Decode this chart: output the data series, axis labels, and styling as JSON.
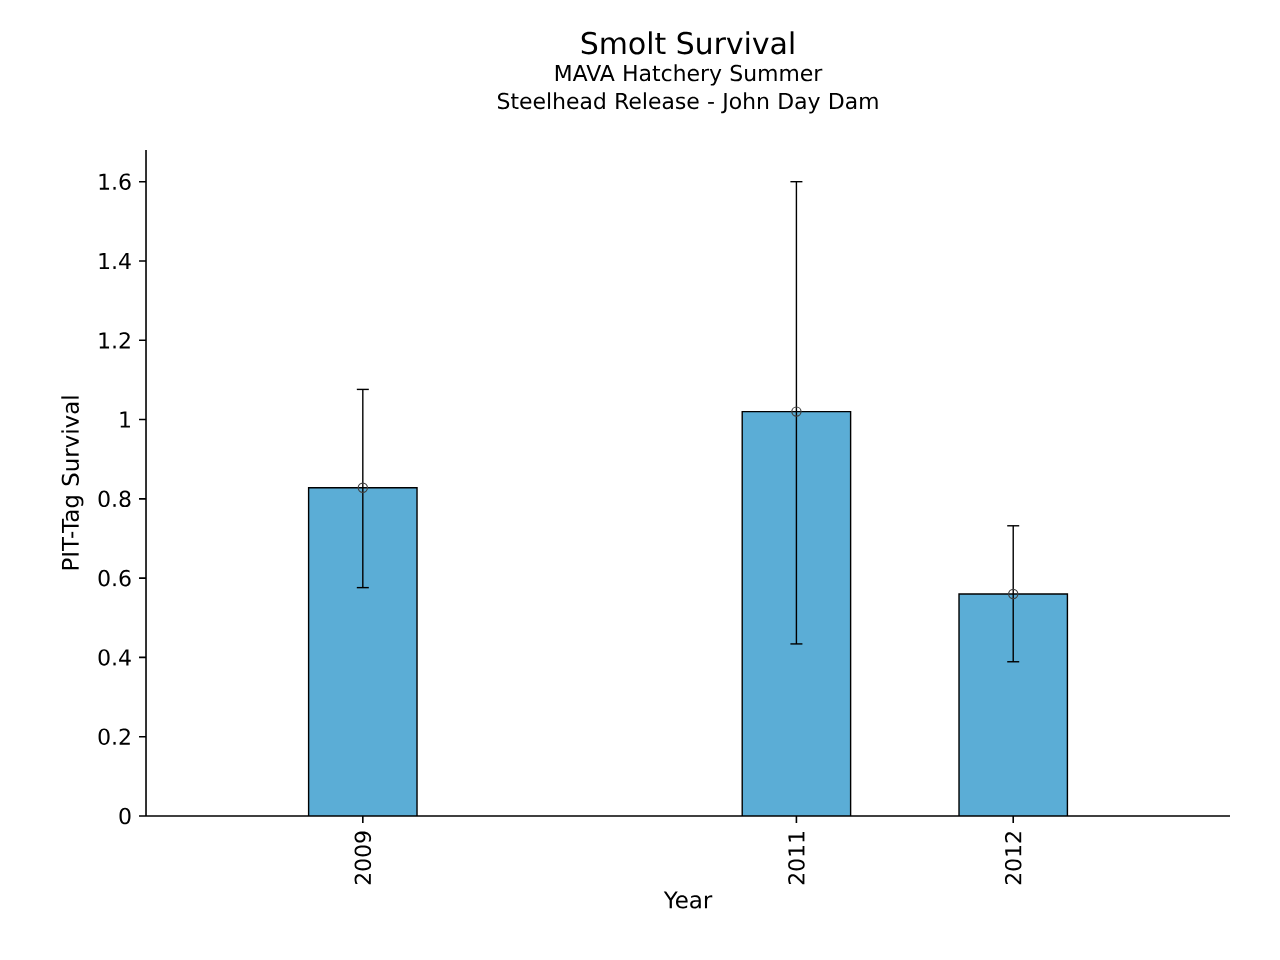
{
  "chart_data": {
    "type": "bar",
    "title": "Smolt Survival",
    "subtitle": "MAVA Hatchery Summer Steelhead Release - John Day Dam",
    "xlabel": "Year",
    "ylabel": "PIT-Tag Survival",
    "x": [
      2009,
      2011,
      2012
    ],
    "series": [
      {
        "color": "#5badd6",
        "values": [
          0.828,
          1.02,
          0.56
        ],
        "errors": [
          [
            0.576,
            1.076
          ],
          [
            0.434,
            1.6
          ],
          [
            0.389,
            0.732
          ]
        ]
      },
      {
        "type": "scatter",
        "color": "#404040",
        "marker": "circle",
        "values": [
          0.828,
          1.02,
          0.56
        ]
      }
    ],
    "xlim": [
      2008,
      2013
    ],
    "xticks": [
      2009,
      2011,
      2012
    ],
    "ylim": [
      0,
      1.68
    ],
    "yticks": [
      0,
      0.2,
      0.4,
      0.6,
      0.8,
      1,
      1.2,
      1.4,
      1.6
    ],
    "grid": false
  }
}
